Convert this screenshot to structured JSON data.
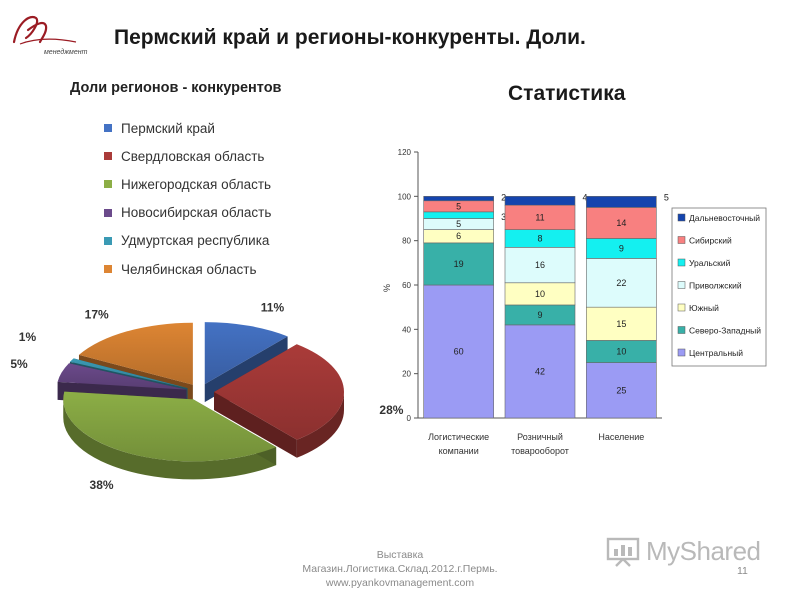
{
  "header": {
    "logo_text": "менеджмент",
    "title": "Пермский край и регионы-конкуренты. Доли."
  },
  "colors": {
    "perm": "#4472c4",
    "sverd": "#aa3b39",
    "nizh": "#8cae46",
    "novosib": "#6b4a8b",
    "udm": "#3a9ab4",
    "chel": "#dd8533"
  },
  "chart_data": [
    {
      "type": "pie",
      "title": "Доли регионов - конкурентов",
      "legend_position": "top",
      "slices": [
        {
          "name": "Пермский край",
          "value": 11,
          "label": "11%",
          "color": "#4472c4"
        },
        {
          "name": "Свердловская область",
          "value": 28,
          "label": "28%",
          "color": "#aa3b39"
        },
        {
          "name": "Нижегородская область",
          "value": 38,
          "label": "38%",
          "color": "#8cae46"
        },
        {
          "name": "Новосибирская область",
          "value": 5,
          "label": "5%",
          "color": "#6b4a8b"
        },
        {
          "name": "Удмуртская республика",
          "value": 1,
          "label": "1%",
          "color": "#3a9ab4"
        },
        {
          "name": "Челябинская область",
          "value": 17,
          "label": "17%",
          "color": "#dd8533"
        }
      ]
    },
    {
      "type": "bar",
      "stacked": true,
      "title": "Статистика",
      "ylabel": "%",
      "ylim": [
        0,
        120
      ],
      "yticks": [
        "0",
        "20",
        "40",
        "60",
        "80",
        "100",
        "120"
      ],
      "categories": [
        "Логистические компании",
        "Розничный товарооборот",
        "Население"
      ],
      "category_lines": [
        [
          "Логистические",
          "компании"
        ],
        [
          "Розничный",
          "товарооборот"
        ],
        [
          "Население"
        ]
      ],
      "legend_position": "right",
      "series": [
        {
          "name": "Центральный",
          "values": [
            60,
            42,
            25
          ],
          "labels": [
            "60",
            "42",
            "25"
          ],
          "color": "#9b9bf4"
        },
        {
          "name": "Северо-Западный",
          "values": [
            19,
            9,
            10
          ],
          "labels": [
            "19",
            "9",
            "10"
          ],
          "color": "#38b0a8"
        },
        {
          "name": "Южный",
          "values": [
            6,
            10,
            15
          ],
          "labels": [
            "6",
            "10",
            "15"
          ],
          "color": "#ffffc2"
        },
        {
          "name": "Приволжский",
          "values": [
            5,
            16,
            22
          ],
          "labels": [
            "5",
            "16",
            "22"
          ],
          "color": "#ddfcfc"
        },
        {
          "name": "Уральский",
          "values": [
            3,
            8,
            9
          ],
          "labels": [
            "3",
            "8",
            "9"
          ],
          "color": "#14f0f0"
        },
        {
          "name": "Сибирский",
          "values": [
            5,
            11,
            14
          ],
          "labels": [
            "5",
            "11",
            "14"
          ],
          "color": "#f88080"
        },
        {
          "name": "Дальневосточный",
          "values": [
            2,
            4,
            5
          ],
          "labels": [
            "2",
            "4",
            "5"
          ],
          "color": "#1444ae"
        }
      ]
    }
  ],
  "footer": {
    "line1": "Выставка",
    "line2": "Магазин.Логистика.Склад.2012.г.Пермь.",
    "line3": "www.pyankovmanagement.com",
    "page_number": "11"
  },
  "watermark": {
    "text": "MyShared"
  }
}
